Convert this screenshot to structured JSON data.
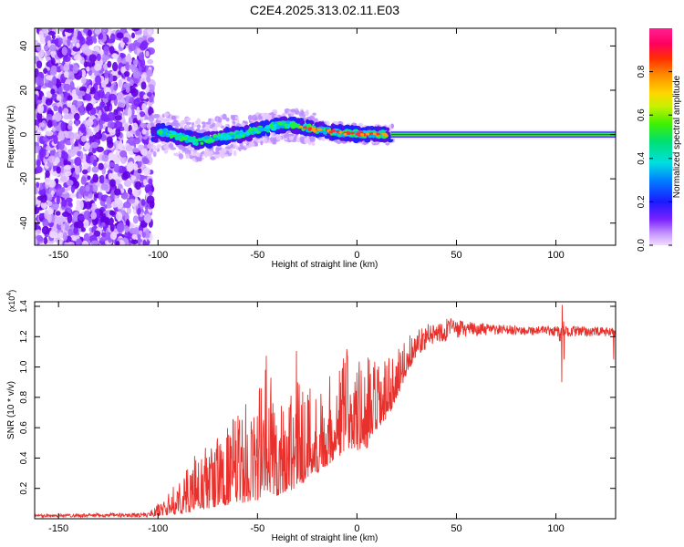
{
  "figure": {
    "title": "C2E4.2025.313.02.11.E03"
  },
  "chart_data": [
    {
      "type": "heatmap",
      "name": "spectrogram",
      "xlabel": "Height of straight line (km)",
      "ylabel": "Frequency (Hz)",
      "xlim": [
        -162,
        130
      ],
      "ylim": [
        -50,
        48
      ],
      "xticks": [
        -150,
        -100,
        -50,
        0,
        50,
        100
      ],
      "yticks": [
        -40,
        -20,
        0,
        20,
        40
      ],
      "colorbar": {
        "label": "Normalized spectral amplitude",
        "range": [
          0,
          1
        ],
        "ticks": [
          0.0,
          0.2,
          0.4,
          0.6,
          0.8
        ]
      },
      "features": {
        "noise_region_x": [
          -162,
          -103
        ],
        "center_line_from_x": 17,
        "peak_frequency_trace": [
          {
            "x": -100,
            "y": 1.5
          },
          {
            "x": -95,
            "y": 0.5
          },
          {
            "x": -90,
            "y": -1
          },
          {
            "x": -85,
            "y": -2
          },
          {
            "x": -80,
            "y": -3
          },
          {
            "x": -75,
            "y": -2.5
          },
          {
            "x": -70,
            "y": -1.5
          },
          {
            "x": -65,
            "y": -0.5
          },
          {
            "x": -60,
            "y": 0
          },
          {
            "x": -55,
            "y": 0.8
          },
          {
            "x": -50,
            "y": 2
          },
          {
            "x": -45,
            "y": 3
          },
          {
            "x": -40,
            "y": 4
          },
          {
            "x": -35,
            "y": 4.5
          },
          {
            "x": -30,
            "y": 4
          },
          {
            "x": -25,
            "y": 3
          },
          {
            "x": -20,
            "y": 2
          },
          {
            "x": -15,
            "y": 1.5
          },
          {
            "x": -10,
            "y": 1
          },
          {
            "x": -5,
            "y": 0.6
          },
          {
            "x": 0,
            "y": 0.3
          },
          {
            "x": 10,
            "y": 0
          },
          {
            "x": 17,
            "y": 0
          },
          {
            "x": 130,
            "y": 0
          }
        ]
      }
    },
    {
      "type": "line",
      "name": "snr",
      "xlabel": "Height of straight line (km)",
      "ylabel": "SNR (10 * v/v)",
      "y_multiplier_label": "(x10",
      "y_multiplier_exp": "4",
      "y_multiplier_close": ")",
      "xlim": [
        -162,
        130
      ],
      "ylim": [
        0,
        1.43
      ],
      "xticks": [
        -150,
        -100,
        -50,
        0,
        50,
        100
      ],
      "yticks": [
        0.2,
        0.4,
        0.6,
        0.8,
        1.0,
        1.2,
        1.4
      ],
      "color": "#e8312c",
      "envelope": [
        {
          "x": -162,
          "lo": 0.01,
          "hi": 0.03
        },
        {
          "x": -105,
          "lo": 0.01,
          "hi": 0.04
        },
        {
          "x": -98,
          "lo": 0.02,
          "hi": 0.12
        },
        {
          "x": -90,
          "lo": 0.03,
          "hi": 0.25
        },
        {
          "x": -80,
          "lo": 0.05,
          "hi": 0.45
        },
        {
          "x": -70,
          "lo": 0.08,
          "hi": 0.55
        },
        {
          "x": -60,
          "lo": 0.1,
          "hi": 0.7
        },
        {
          "x": -50,
          "lo": 0.12,
          "hi": 0.85
        },
        {
          "x": -45,
          "lo": 0.15,
          "hi": 1.15
        },
        {
          "x": -40,
          "lo": 0.15,
          "hi": 0.8
        },
        {
          "x": -35,
          "lo": 0.18,
          "hi": 0.85
        },
        {
          "x": -30,
          "lo": 0.2,
          "hi": 1.15
        },
        {
          "x": -25,
          "lo": 0.25,
          "hi": 0.95
        },
        {
          "x": -20,
          "lo": 0.3,
          "hi": 0.85
        },
        {
          "x": -15,
          "lo": 0.35,
          "hi": 0.95
        },
        {
          "x": -10,
          "lo": 0.4,
          "hi": 1.0
        },
        {
          "x": -5,
          "lo": 0.45,
          "hi": 1.2
        },
        {
          "x": 0,
          "lo": 0.45,
          "hi": 1.05
        },
        {
          "x": 5,
          "lo": 0.45,
          "hi": 1.1
        },
        {
          "x": 10,
          "lo": 0.55,
          "hi": 1.05
        },
        {
          "x": 15,
          "lo": 0.65,
          "hi": 1.05
        },
        {
          "x": 20,
          "lo": 0.8,
          "hi": 1.1
        },
        {
          "x": 25,
          "lo": 0.95,
          "hi": 1.2
        },
        {
          "x": 30,
          "lo": 1.08,
          "hi": 1.25
        },
        {
          "x": 35,
          "lo": 1.12,
          "hi": 1.28
        },
        {
          "x": 40,
          "lo": 1.15,
          "hi": 1.3
        },
        {
          "x": 45,
          "lo": 1.17,
          "hi": 1.33
        },
        {
          "x": 55,
          "lo": 1.2,
          "hi": 1.3
        },
        {
          "x": 70,
          "lo": 1.21,
          "hi": 1.28
        },
        {
          "x": 90,
          "lo": 1.21,
          "hi": 1.27
        },
        {
          "x": 100,
          "lo": 1.2,
          "hi": 1.27
        },
        {
          "x": 110,
          "lo": 1.2,
          "hi": 1.27
        },
        {
          "x": 130,
          "lo": 1.2,
          "hi": 1.26
        }
      ],
      "spikes": [
        {
          "x": 102,
          "hi": 1.22,
          "lo": 1.17
        },
        {
          "x": 103,
          "hi": 1.41,
          "lo": 0.9
        },
        {
          "x": 104,
          "hi": 1.3,
          "lo": 1.05
        },
        {
          "x": 129,
          "hi": 1.24,
          "lo": 1.05
        }
      ]
    }
  ]
}
